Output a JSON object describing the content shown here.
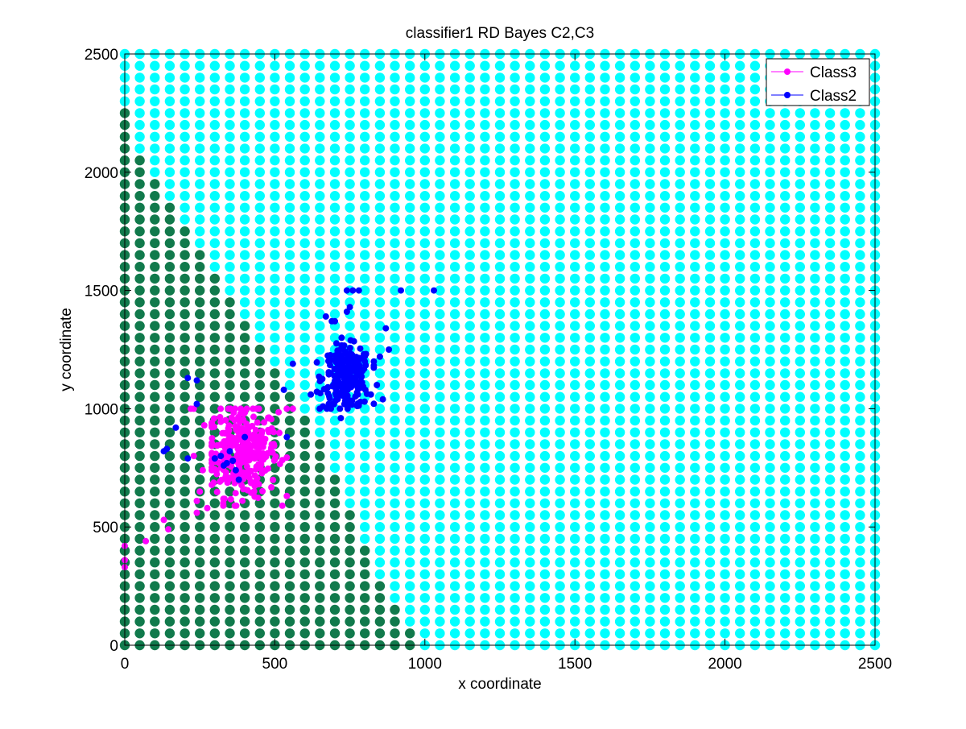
{
  "chart_data": {
    "type": "scatter",
    "title": "classifier1 RD Bayes C2,C3",
    "xlabel": "x coordinate",
    "ylabel": "y coordinate",
    "xlim": [
      0,
      2500
    ],
    "ylim": [
      0,
      2500
    ],
    "xticks": [
      0,
      500,
      1000,
      1500,
      2000,
      2500
    ],
    "yticks": [
      0,
      500,
      1000,
      1500,
      2000,
      2500
    ],
    "grid": false,
    "legend_position": "top-right",
    "background_grid": {
      "step": 50,
      "class2_region_color": "#00ffff",
      "class3_region_color": "#117a4c",
      "boundary_x_at_y": [
        [
          0,
          975
        ],
        [
          100,
          925
        ],
        [
          200,
          875
        ],
        [
          300,
          825
        ],
        [
          400,
          800
        ],
        [
          500,
          775
        ],
        [
          600,
          725
        ],
        [
          700,
          700
        ],
        [
          800,
          675
        ],
        [
          900,
          625
        ],
        [
          1000,
          575
        ],
        [
          1100,
          525
        ],
        [
          1200,
          475
        ],
        [
          1300,
          425
        ],
        [
          1400,
          375
        ],
        [
          1500,
          325
        ],
        [
          1600,
          275
        ],
        [
          1700,
          225
        ],
        [
          1800,
          175
        ],
        [
          1900,
          125
        ],
        [
          2000,
          75
        ],
        [
          2100,
          25
        ],
        [
          2200,
          25
        ],
        [
          2300,
          -25
        ],
        [
          2400,
          -25
        ],
        [
          2500,
          -25
        ]
      ]
    },
    "series": [
      {
        "name": "Class3",
        "color": "#ff00ff",
        "cluster": {
          "cx": 390,
          "cy": 820,
          "sx": 60,
          "sy": 95,
          "n": 320,
          "xmin": 290,
          "xmax": 540,
          "ymin": 590,
          "ymax": 1000
        },
        "outliers": [
          [
            0,
            420
          ],
          [
            0,
            360
          ],
          [
            0,
            330
          ],
          [
            70,
            440
          ],
          [
            130,
            530
          ],
          [
            145,
            490
          ],
          [
            230,
            800
          ],
          [
            260,
            740
          ],
          [
            250,
            650
          ],
          [
            240,
            610
          ],
          [
            240,
            560
          ],
          [
            275,
            580
          ],
          [
            265,
            930
          ],
          [
            230,
            1000
          ],
          [
            540,
            1000
          ],
          [
            560,
            1000
          ],
          [
            220,
            1000
          ]
        ]
      },
      {
        "name": "Class2",
        "color": "#0000ff",
        "cluster": {
          "cx": 740,
          "cy": 1130,
          "sx": 40,
          "sy": 65,
          "n": 240,
          "xmin": 640,
          "xmax": 830,
          "ymin": 1000,
          "ymax": 1300
        },
        "outliers": [
          [
            300,
            790
          ],
          [
            340,
            770
          ],
          [
            360,
            780
          ],
          [
            370,
            740
          ],
          [
            380,
            700
          ],
          [
            350,
            820
          ],
          [
            330,
            760
          ],
          [
            320,
            800
          ],
          [
            210,
            790
          ],
          [
            140,
            830
          ],
          [
            130,
            820
          ],
          [
            170,
            920
          ],
          [
            210,
            1130
          ],
          [
            240,
            1120
          ],
          [
            240,
            1020
          ],
          [
            400,
            880
          ],
          [
            540,
            880
          ],
          [
            560,
            1190
          ],
          [
            530,
            1080
          ],
          [
            620,
            1060
          ],
          [
            680,
            1020
          ],
          [
            720,
            960
          ],
          [
            820,
            1060
          ],
          [
            860,
            1040
          ],
          [
            840,
            1100
          ],
          [
            800,
            1200
          ],
          [
            830,
            1200
          ],
          [
            690,
            1370
          ],
          [
            700,
            1370
          ],
          [
            670,
            1390
          ],
          [
            740,
            1410
          ],
          [
            750,
            1430
          ],
          [
            760,
            1500
          ],
          [
            780,
            1500
          ],
          [
            740,
            1500
          ],
          [
            920,
            1500
          ],
          [
            1030,
            1500
          ],
          [
            870,
            1340
          ],
          [
            850,
            1220
          ],
          [
            880,
            1250
          ]
        ]
      }
    ]
  }
}
